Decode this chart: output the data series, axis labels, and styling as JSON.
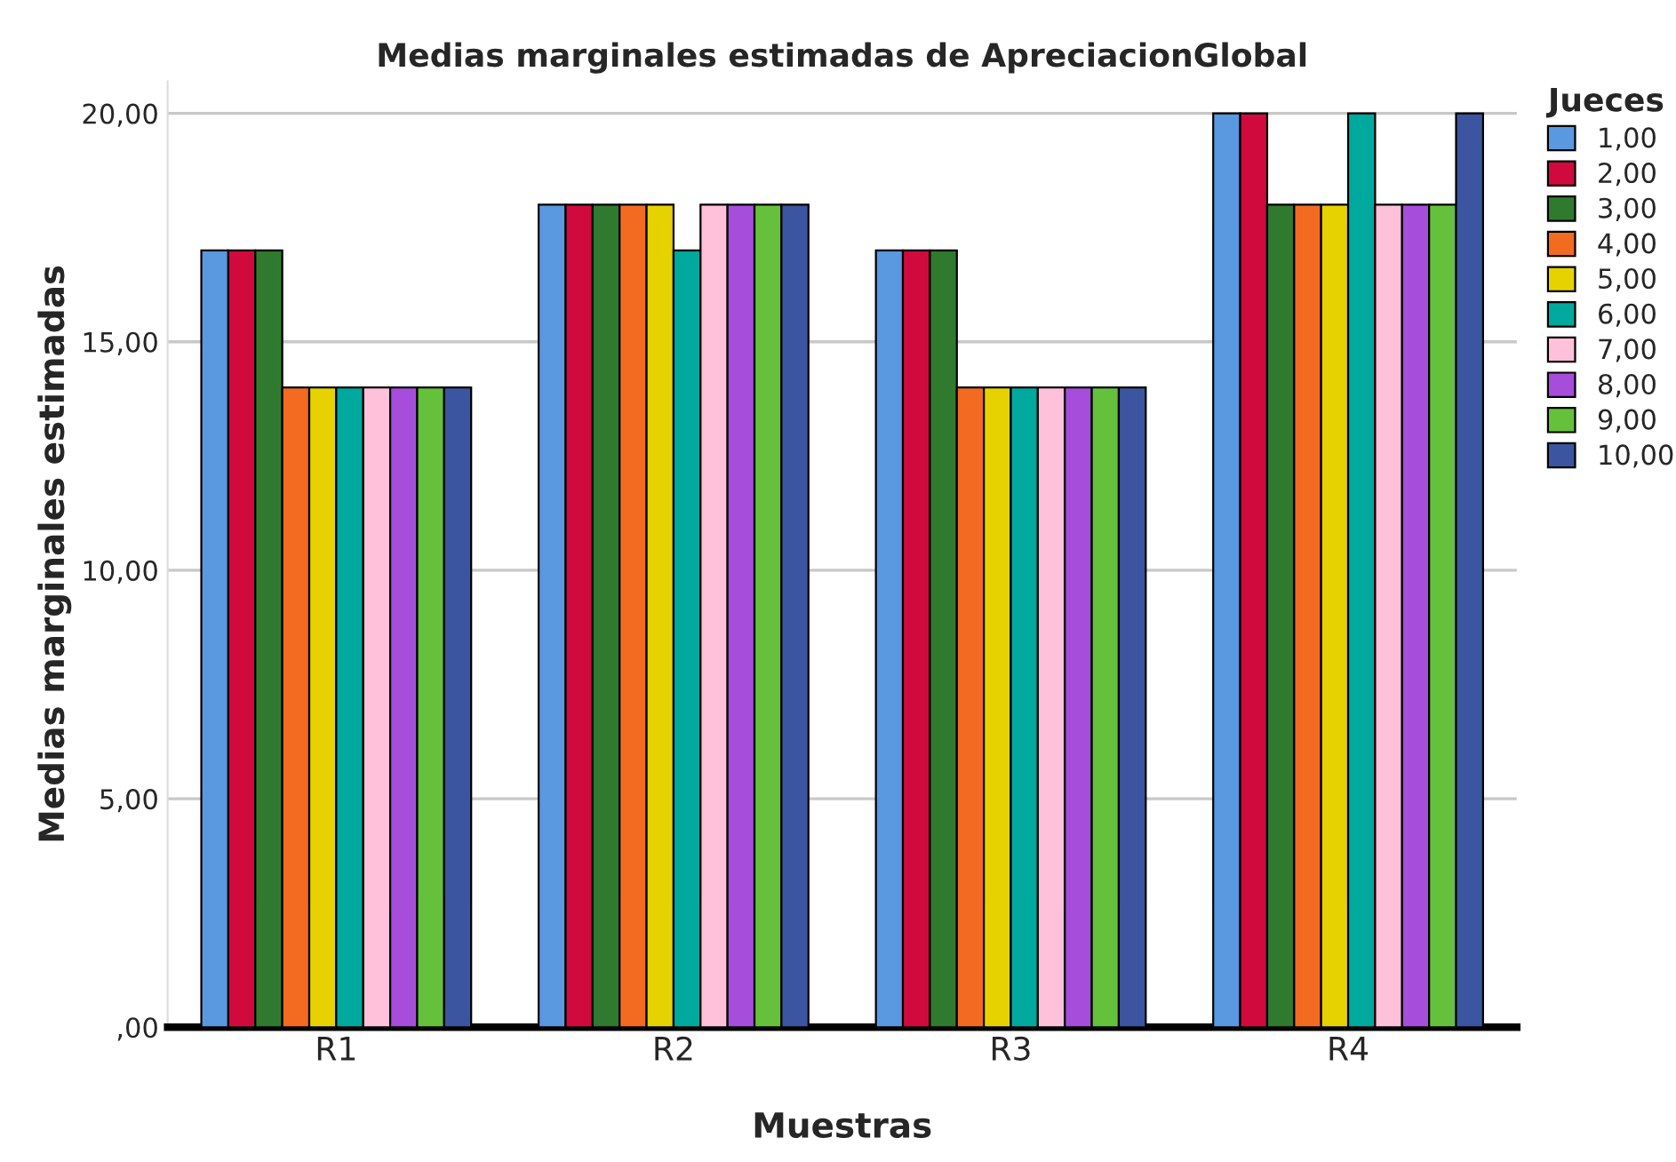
{
  "chart_data": {
    "type": "bar",
    "title": "Medias marginales estimadas de ApreciacionGlobal",
    "xlabel": "Muestras",
    "ylabel": "Medias marginales estimadas",
    "legend_title": "Jueces",
    "categories": [
      "R1",
      "R2",
      "R3",
      "R4"
    ],
    "series": [
      {
        "name": "1,00",
        "color": "#5a98e0",
        "values": [
          17,
          18,
          17,
          20
        ]
      },
      {
        "name": "2,00",
        "color": "#d00a3c",
        "values": [
          17,
          18,
          17,
          20
        ]
      },
      {
        "name": "3,00",
        "color": "#2f7a2f",
        "values": [
          17,
          18,
          17,
          18
        ]
      },
      {
        "name": "4,00",
        "color": "#f26b21",
        "values": [
          14,
          18,
          14,
          18
        ]
      },
      {
        "name": "5,00",
        "color": "#e6d200",
        "values": [
          14,
          18,
          14,
          18
        ]
      },
      {
        "name": "6,00",
        "color": "#00a99d",
        "values": [
          14,
          17,
          14,
          20
        ]
      },
      {
        "name": "7,00",
        "color": "#ffc0da",
        "values": [
          14,
          18,
          14,
          18
        ]
      },
      {
        "name": "8,00",
        "color": "#a64ddc",
        "values": [
          14,
          18,
          14,
          18
        ]
      },
      {
        "name": "9,00",
        "color": "#65c13b",
        "values": [
          14,
          18,
          14,
          18
        ]
      },
      {
        "name": "10,00",
        "color": "#3b55a0",
        "values": [
          14,
          18,
          14,
          20
        ]
      }
    ],
    "ylim": [
      0,
      20.7
    ],
    "yticks": [
      {
        "value": 0,
        "label": ",00"
      },
      {
        "value": 5,
        "label": "5,00"
      },
      {
        "value": 10,
        "label": "10,00"
      },
      {
        "value": 15,
        "label": "15,00"
      },
      {
        "value": 20,
        "label": "20,00"
      }
    ],
    "grid": "y",
    "legend": "right"
  }
}
